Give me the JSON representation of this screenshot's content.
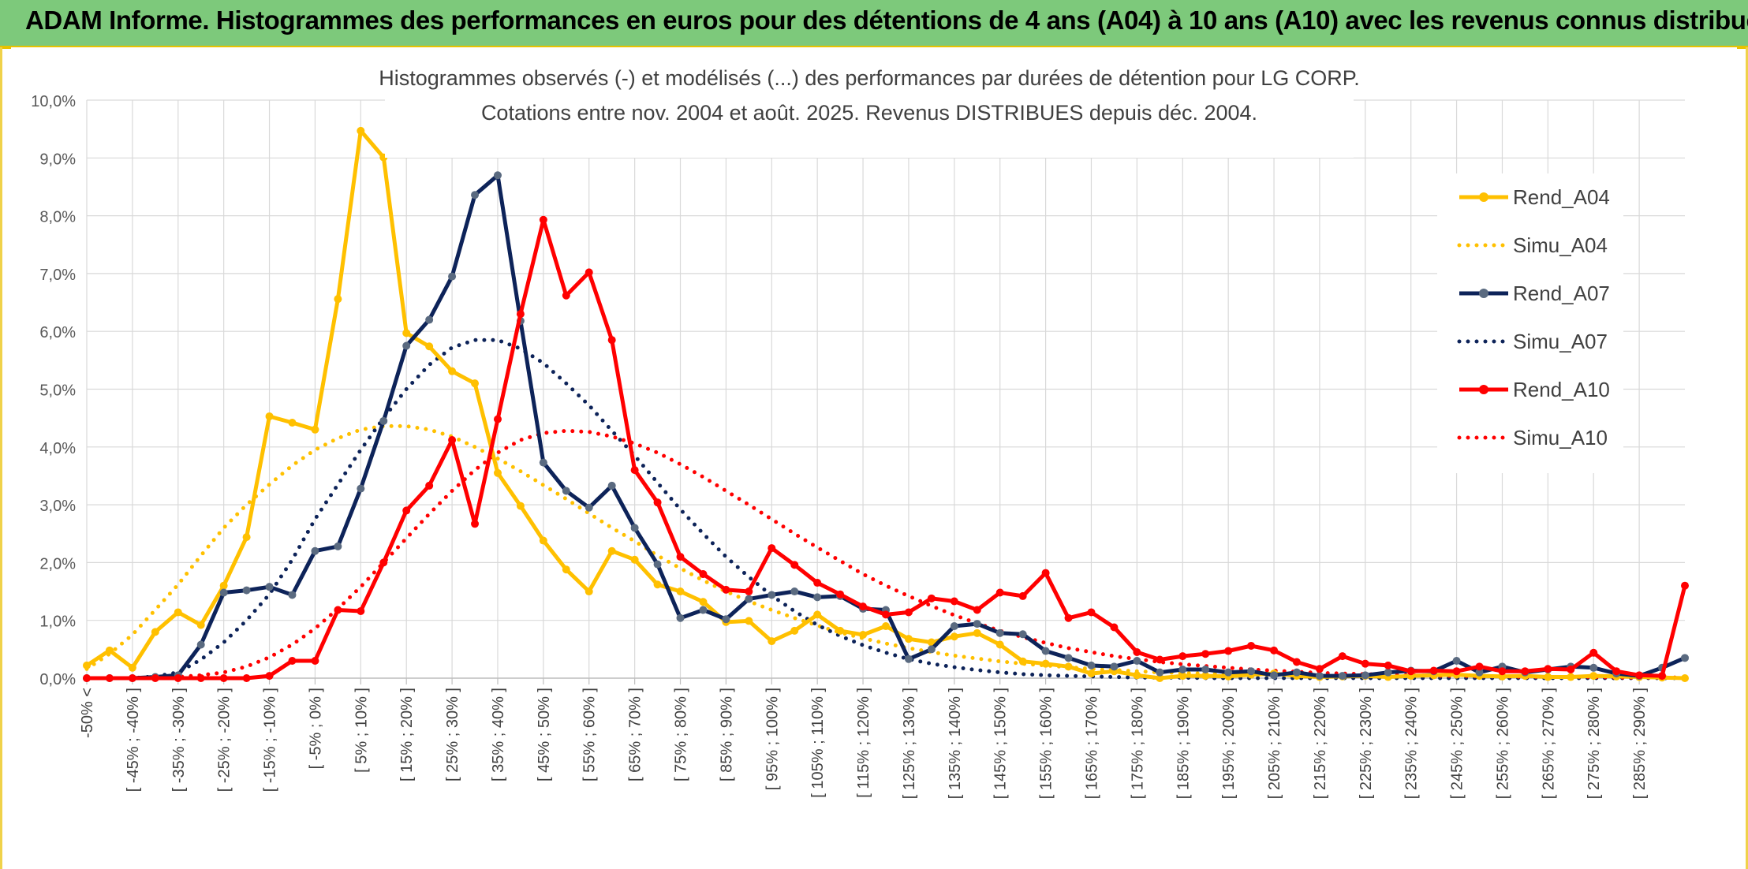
{
  "banner": {
    "title": "ADAM Informe. Histogrammes des performances en euros pour des détentions de 4 ans (A04) à 10 ans (A10) avec les revenus connus distribués"
  },
  "colors": {
    "banner_bg": "#7DC97B",
    "accent_border": "#e8c200",
    "A04": "#FFC000",
    "A07": "#0D2359",
    "A07_marker": "#5A6A80",
    "A10": "#FF0000"
  },
  "chart_data": {
    "type": "line",
    "title": "Histogrammes observés (-) et modélisés (...) des performances par durées de détention pour LG CORP.",
    "subtitle": "Cotations entre nov. 2004 et août. 2025. Revenus DISTRIBUES depuis déc. 2004.",
    "xlabel": "",
    "ylabel": "",
    "ylim": [
      0,
      10
    ],
    "y_ticks": [
      "0,0%",
      "1,0%",
      "2,0%",
      "3,0%",
      "4,0%",
      "5,0%",
      "6,0%",
      "7,0%",
      "8,0%",
      "9,0%",
      "10,0%"
    ],
    "grid": true,
    "legend_position": "right",
    "categories": [
      "-50% <",
      "[ -50% ; -45% ]",
      "[ -45% ; -40% ]",
      "[ -40% ; -35% ]",
      "[ -35% ; -30% ]",
      "[ -30% ; -25% ]",
      "[ -25% ; -20% ]",
      "[ -20% ; -15% ]",
      "[ -15% ; -10% ]",
      "[ -10% ; -5% ]",
      "[ -5% ; 0% ]",
      "[ 0% ; 5% ]",
      "[ 5% ; 10% ]",
      "[ 10% ; 15% ]",
      "[ 15% ; 20% ]",
      "[ 20% ; 25% ]",
      "[ 25% ; 30% ]",
      "[ 30% ; 35% ]",
      "[ 35% ; 40% ]",
      "[ 40% ; 45% ]",
      "[ 45% ; 50% ]",
      "[ 50% ; 55% ]",
      "[ 55% ; 60% ]",
      "[ 60% ; 65% ]",
      "[ 65% ; 70% ]",
      "[ 70% ; 75% ]",
      "[ 75% ; 80% ]",
      "[ 80% ; 85% ]",
      "[ 85% ; 90% ]",
      "[ 90% ; 95% ]",
      "[ 95% ; 100% ]",
      "[ 100% ; 105% ]",
      "[ 105% ; 110% ]",
      "[ 110% ; 115% ]",
      "[ 115% ; 120% ]",
      "[ 120% ; 125% ]",
      "[ 125% ; 130% ]",
      "[ 130% ; 135% ]",
      "[ 135% ; 140% ]",
      "[ 140% ; 145% ]",
      "[ 145% ; 150% ]",
      "[ 150% ; 155% ]",
      "[ 155% ; 160% ]",
      "[ 160% ; 165% ]",
      "[ 165% ; 170% ]",
      "[ 170% ; 175% ]",
      "[ 175% ; 180% ]",
      "[ 180% ; 185% ]",
      "[ 185% ; 190% ]",
      "[ 190% ; 195% ]",
      "[ 195% ; 200% ]",
      "[ 200% ; 205% ]",
      "[ 205% ; 210% ]",
      "[ 210% ; 215% ]",
      "[ 215% ; 220% ]",
      "[ 220% ; 225% ]",
      "[ 225% ; 230% ]",
      "[ 230% ; 235% ]",
      "[ 235% ; 240% ]",
      "[ 240% ; 245% ]",
      "[ 245% ; 250% ]",
      "[ 250% ; 255% ]",
      "[ 255% ; 260% ]",
      "[ 260% ; 265% ]",
      "[ 265% ; 270% ]",
      "[ 270% ; 275% ]",
      "[ 275% ; 280% ]",
      "[ 280% ; 285% ]",
      "[ 285% ; 290% ]",
      "[ 290% ; 295% ]",
      "[ 295% ; 300% ]"
    ],
    "shown_tick_labels": [
      "-50% <",
      "[ -45% ; -40% ]",
      "[ -35% ; -30% ]",
      "[ -25% ; -20% ]",
      "[ -15% ; -10% ]",
      "[ -5% ; 0% ]",
      "[ 5% ; 10% ]",
      "[ 15% ; 20% ]",
      "[ 25% ; 30% ]",
      "[ 35% ; 40% ]",
      "[ 45% ; 50% ]",
      "[ 55% ; 60% ]",
      "[ 65% ; 70% ]",
      "[ 75% ; 80% ]",
      "[ 85% ; 90% ]",
      "[ 95% ; 100% ]",
      "[ 105% ; 110% ]",
      "[ 115% ; 120% ]",
      "[ 125% ; 130% ]",
      "[ 135% ; 140% ]",
      "[ 145% ; 150% ]",
      "[ 155% ; 160% ]",
      "[ 165% ; 170% ]",
      "[ 175% ; 180% ]",
      "[ 185% ; 190% ]",
      "[ 195% ; 200% ]",
      "[ 205% ; 210% ]",
      "[ 215% ; 220% ]",
      "[ 225% ; 230% ]",
      "[ 235% ; 240% ]",
      "[ 245% ; 250% ]",
      "[ 255% ; 260% ]",
      "[ 265% ; 270% ]",
      "[ 275% ; 280% ]",
      "[ 285% ; 290% ]"
    ],
    "series": [
      {
        "name": "Rend_A04",
        "style": "solid",
        "color": "#FFC000",
        "markers": true,
        "values": [
          0.22,
          0.48,
          0.18,
          0.8,
          1.14,
          0.92,
          1.6,
          2.44,
          4.53,
          4.42,
          4.3,
          6.56,
          9.47,
          9.01,
          5.97,
          5.74,
          5.31,
          5.1,
          3.55,
          2.98,
          2.38,
          1.88,
          1.5,
          2.2,
          2.05,
          1.62,
          1.5,
          1.32,
          0.97,
          0.99,
          0.64,
          0.82,
          1.1,
          0.82,
          0.75,
          0.9,
          0.68,
          0.62,
          0.72,
          0.78,
          0.58,
          0.29,
          0.25,
          0.2,
          0.08,
          0.12,
          0.05,
          0.0,
          0.04,
          0.04,
          0.03,
          0.06,
          0.08,
          0.04,
          0.02,
          0.03,
          0.04,
          0.02,
          0.04,
          0.05,
          0.06,
          0.04,
          0.03,
          0.04,
          0.02,
          0.02,
          0.04,
          0.03,
          0.02,
          0.01,
          0.0
        ]
      },
      {
        "name": "Simu_A04",
        "style": "dotted",
        "color": "#FFC000",
        "markers": false,
        "values": [
          0.16,
          0.42,
          0.75,
          1.18,
          1.62,
          2.12,
          2.6,
          3.0,
          3.35,
          3.68,
          3.95,
          4.15,
          4.3,
          4.36,
          4.36,
          4.3,
          4.18,
          4.0,
          3.8,
          3.58,
          3.34,
          3.1,
          2.85,
          2.6,
          2.37,
          2.12,
          1.9,
          1.69,
          1.5,
          1.33,
          1.18,
          1.04,
          0.91,
          0.79,
          0.69,
          0.6,
          0.52,
          0.45,
          0.39,
          0.34,
          0.29,
          0.25,
          0.22,
          0.19,
          0.16,
          0.14,
          0.12,
          0.1,
          0.09,
          0.08,
          0.07,
          0.06,
          0.05,
          0.04,
          0.04,
          0.03,
          0.03,
          0.03,
          0.02,
          0.02,
          0.02,
          0.02,
          0.02,
          0.01,
          0.01,
          0.01,
          0.01,
          0.01,
          0.01,
          0.01,
          0.01
        ]
      },
      {
        "name": "Rend_A07",
        "style": "solid",
        "color": "#0D2359",
        "markers": true,
        "values": [
          0.0,
          0.0,
          0.0,
          0.02,
          0.05,
          0.58,
          1.48,
          1.52,
          1.58,
          1.44,
          2.2,
          2.28,
          3.28,
          4.45,
          5.75,
          6.2,
          6.95,
          8.36,
          8.7,
          6.18,
          3.73,
          3.24,
          2.95,
          3.33,
          2.6,
          1.97,
          1.04,
          1.18,
          1.02,
          1.37,
          1.44,
          1.5,
          1.4,
          1.42,
          1.2,
          1.18,
          0.33,
          0.5,
          0.9,
          0.94,
          0.78,
          0.76,
          0.47,
          0.35,
          0.22,
          0.2,
          0.3,
          0.1,
          0.15,
          0.15,
          0.1,
          0.12,
          0.05,
          0.1,
          0.04,
          0.04,
          0.05,
          0.1,
          0.13,
          0.12,
          0.3,
          0.1,
          0.2,
          0.1,
          0.15,
          0.2,
          0.18,
          0.08,
          0.04,
          0.18,
          0.35
        ]
      },
      {
        "name": "Simu_A07",
        "style": "dotted",
        "color": "#0D2359",
        "markers": false,
        "values": [
          0.0,
          0.0,
          0.0,
          0.03,
          0.1,
          0.32,
          0.62,
          1.0,
          1.45,
          2.05,
          2.75,
          3.35,
          3.95,
          4.5,
          5.0,
          5.42,
          5.72,
          5.85,
          5.85,
          5.7,
          5.45,
          5.1,
          4.72,
          4.28,
          3.85,
          3.38,
          2.92,
          2.5,
          2.1,
          1.75,
          1.43,
          1.16,
          0.92,
          0.73,
          0.57,
          0.44,
          0.33,
          0.25,
          0.19,
          0.14,
          0.1,
          0.07,
          0.05,
          0.04,
          0.03,
          0.02,
          0.01,
          0.01,
          0.01,
          0.0,
          0.0,
          0.0,
          0.0,
          0.0,
          0.0,
          0.0,
          0.0,
          0.0,
          0.0,
          0.0,
          0.0,
          0.0,
          0.0,
          0.0,
          0.0,
          0.0,
          0.0,
          0.0,
          0.0,
          0.0,
          0.0
        ]
      },
      {
        "name": "Rend_A10",
        "style": "solid",
        "color": "#FF0000",
        "markers": true,
        "values": [
          0.0,
          0.0,
          0.0,
          0.0,
          0.0,
          0.0,
          0.0,
          0.0,
          0.04,
          0.3,
          0.3,
          1.18,
          1.16,
          2.0,
          2.9,
          3.33,
          4.12,
          2.67,
          4.48,
          6.3,
          7.93,
          6.62,
          7.02,
          5.85,
          3.6,
          3.04,
          2.1,
          1.8,
          1.53,
          1.5,
          2.25,
          1.96,
          1.65,
          1.45,
          1.24,
          1.1,
          1.14,
          1.38,
          1.33,
          1.18,
          1.48,
          1.42,
          1.82,
          1.04,
          1.14,
          0.88,
          0.45,
          0.32,
          0.38,
          0.42,
          0.47,
          0.56,
          0.48,
          0.28,
          0.16,
          0.38,
          0.25,
          0.22,
          0.12,
          0.13,
          0.12,
          0.2,
          0.12,
          0.12,
          0.16,
          0.15,
          0.44,
          0.12,
          0.05,
          0.04,
          1.6
        ]
      },
      {
        "name": "Simu_A10",
        "style": "dotted",
        "color": "#FF0000",
        "markers": false,
        "values": [
          0.0,
          0.0,
          0.0,
          0.0,
          0.02,
          0.05,
          0.1,
          0.2,
          0.36,
          0.58,
          0.86,
          1.2,
          1.58,
          2.0,
          2.42,
          2.84,
          3.24,
          3.6,
          3.9,
          4.12,
          4.24,
          4.28,
          4.26,
          4.18,
          4.06,
          3.9,
          3.7,
          3.48,
          3.24,
          3.0,
          2.75,
          2.5,
          2.26,
          2.03,
          1.8,
          1.6,
          1.42,
          1.25,
          1.09,
          0.95,
          0.82,
          0.71,
          0.61,
          0.52,
          0.45,
          0.38,
          0.33,
          0.28,
          0.24,
          0.21,
          0.18,
          0.15,
          0.13,
          0.11,
          0.09,
          0.08,
          0.07,
          0.06,
          0.05,
          0.04,
          0.04,
          0.03,
          0.03,
          0.02,
          0.02,
          0.02,
          0.02,
          0.01,
          0.01,
          0.01,
          0.01
        ]
      }
    ]
  }
}
